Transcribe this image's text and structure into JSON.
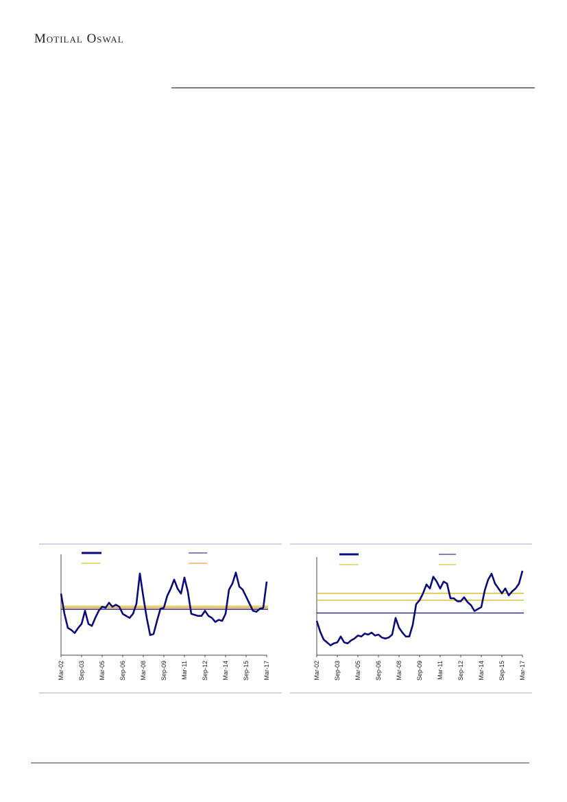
{
  "header": {
    "brand": "Motilal Oswal"
  },
  "charts": [
    {
      "type": "line",
      "xlim": [
        0,
        60
      ],
      "xticks": [
        {
          "value": 0,
          "label": "Mar-02"
        },
        {
          "value": 6,
          "label": "Sep-03"
        },
        {
          "value": 12,
          "label": "Mar-05"
        },
        {
          "value": 18,
          "label": "Sep-06"
        },
        {
          "value": 24,
          "label": "Mar-08"
        },
        {
          "value": 30,
          "label": "Sep-09"
        },
        {
          "value": 36,
          "label": "Mar-11"
        },
        {
          "value": 42,
          "label": "Sep-12"
        },
        {
          "value": 48,
          "label": "Mar-14"
        },
        {
          "value": 54,
          "label": "Sep-15"
        },
        {
          "value": 60,
          "label": "Mar-17"
        }
      ],
      "ylim": [
        0,
        100
      ],
      "series": [
        {
          "color": "#0a0a7a",
          "values": [
            61,
            41,
            27,
            25,
            22,
            27,
            31,
            44,
            31,
            29,
            37,
            44,
            48,
            47,
            52,
            48,
            50,
            48,
            41,
            39,
            37,
            41,
            51,
            81,
            58,
            37,
            20,
            21,
            34,
            46,
            47,
            59,
            66,
            75,
            66,
            61,
            77,
            63,
            41,
            40,
            39,
            39,
            44,
            39,
            37,
            33,
            35,
            34,
            41,
            65,
            71,
            82,
            68,
            65,
            58,
            51,
            44,
            43,
            46,
            47,
            73
          ]
        }
      ],
      "reference_lines": [
        {
          "color": "#0a0a7a",
          "value": 45.5
        },
        {
          "color": "#c8b400",
          "value": 48.5
        },
        {
          "color": "#f08c00",
          "value": 47
        }
      ]
    },
    {
      "type": "line",
      "xlim": [
        0,
        60
      ],
      "xticks": [
        {
          "value": 0,
          "label": "Mar-02"
        },
        {
          "value": 6,
          "label": "Sep-03"
        },
        {
          "value": 12,
          "label": "Mar-05"
        },
        {
          "value": 18,
          "label": "Sep-06"
        },
        {
          "value": 24,
          "label": "Mar-08"
        },
        {
          "value": 30,
          "label": "Sep-09"
        },
        {
          "value": 36,
          "label": "Mar-11"
        },
        {
          "value": 42,
          "label": "Sep-12"
        },
        {
          "value": 48,
          "label": "Mar-14"
        },
        {
          "value": 54,
          "label": "Sep-15"
        },
        {
          "value": 60,
          "label": "Mar-17"
        }
      ],
      "ylim": [
        0,
        100
      ],
      "series": [
        {
          "color": "#0a0a7a",
          "values": [
            35,
            24,
            16,
            13,
            10,
            12,
            13,
            19,
            13,
            12,
            15,
            17,
            20,
            19,
            22,
            21,
            23,
            20,
            21,
            18,
            17,
            18,
            21,
            38,
            28,
            23,
            19,
            19,
            31,
            52,
            56,
            63,
            72,
            68,
            80,
            75,
            68,
            75,
            73,
            58,
            58,
            55,
            55,
            59,
            54,
            51,
            45,
            47,
            49,
            66,
            77,
            83,
            73,
            68,
            63,
            68,
            61,
            65,
            68,
            73,
            86
          ]
        }
      ],
      "reference_lines": [
        {
          "color": "#0a0a7a",
          "value": 43
        },
        {
          "color": "#c8b400",
          "value": 63
        },
        {
          "color": "#c8b400",
          "value": 56
        }
      ]
    }
  ]
}
